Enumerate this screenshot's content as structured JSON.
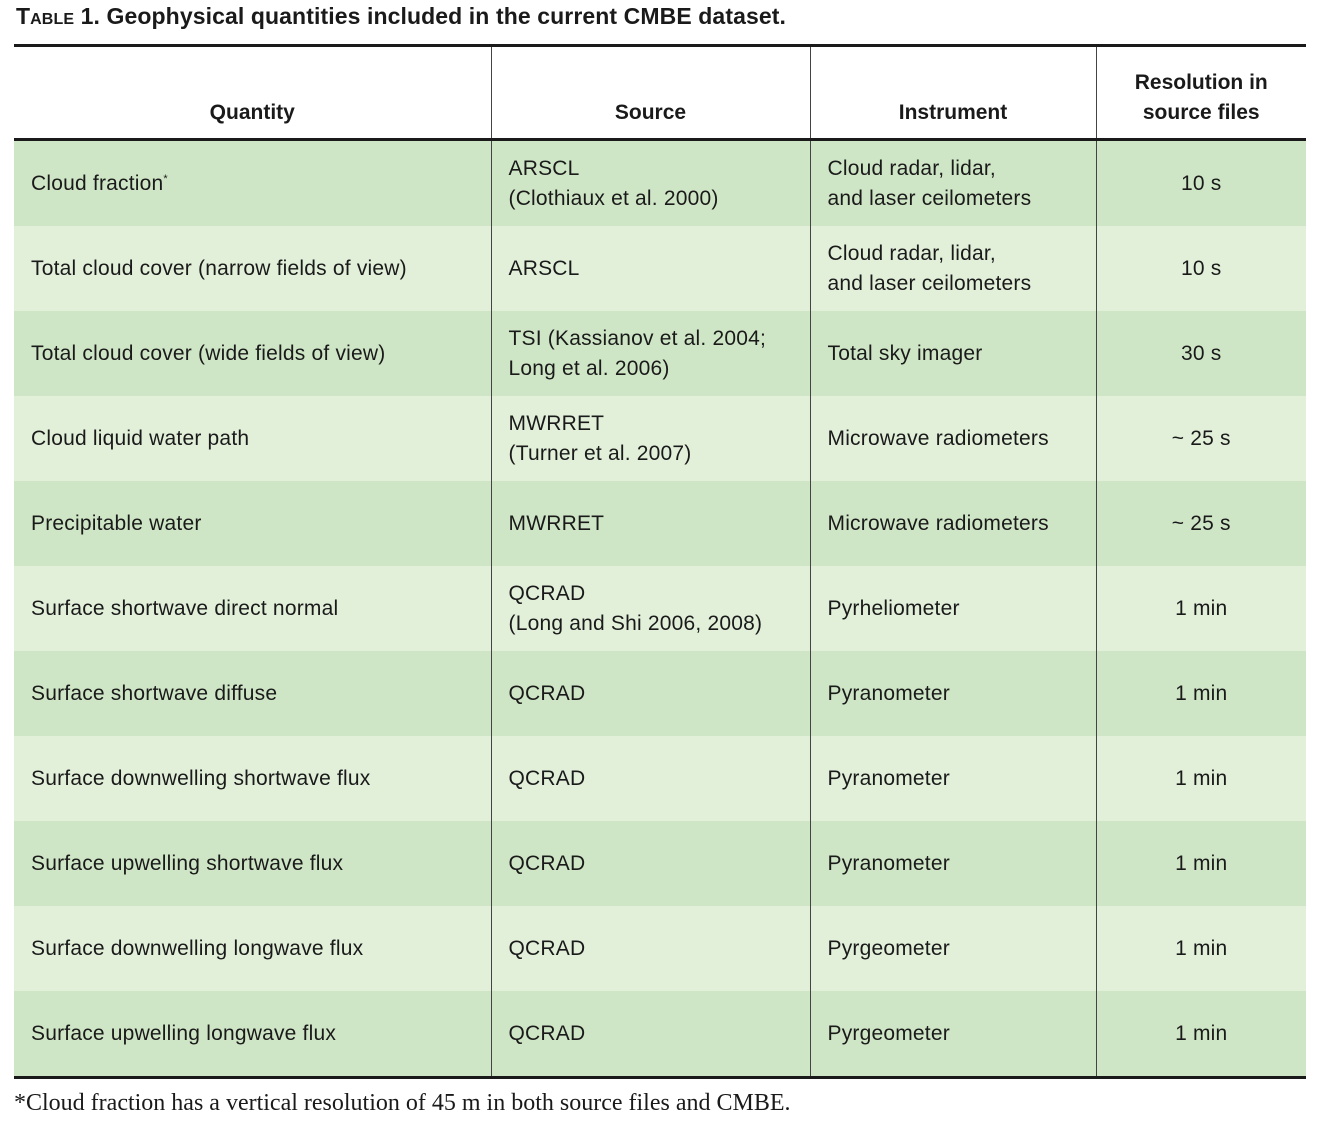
{
  "caption": {
    "label": "Table 1.",
    "text": "Geophysical quantities included in the current CMBE dataset."
  },
  "headers": [
    "Quantity",
    "Source",
    "Instrument",
    "Resolution in source files"
  ],
  "headers_split": {
    "resolution_line1": "Resolution in",
    "resolution_line2": "source files"
  },
  "rows": [
    {
      "quantity": "Cloud fraction",
      "quantity_mark": "*",
      "source": [
        "ARSCL",
        "(Clothiaux et al. 2000)"
      ],
      "instrument": [
        "Cloud radar, lidar,",
        "and laser ceilometers"
      ],
      "resolution": "10 s"
    },
    {
      "quantity": "Total cloud cover (narrow fields of view)",
      "source": [
        "ARSCL"
      ],
      "instrument": [
        "Cloud radar, lidar,",
        "and laser ceilometers"
      ],
      "resolution": "10 s"
    },
    {
      "quantity": "Total cloud cover (wide fields of view)",
      "source": [
        "TSI (Kassianov et al. 2004;",
        "Long et al. 2006)"
      ],
      "instrument": [
        "Total sky imager"
      ],
      "resolution": "30 s"
    },
    {
      "quantity": "Cloud liquid water path",
      "source": [
        "MWRRET",
        "(Turner et al. 2007)"
      ],
      "instrument": [
        "Microwave radiometers"
      ],
      "resolution": "~ 25 s"
    },
    {
      "quantity": "Precipitable water",
      "source": [
        "MWRRET"
      ],
      "instrument": [
        "Microwave radiometers"
      ],
      "resolution": "~ 25 s"
    },
    {
      "quantity": "Surface shortwave direct normal",
      "source": [
        "QCRAD",
        "(Long and Shi 2006, 2008)"
      ],
      "instrument": [
        "Pyrheliometer"
      ],
      "resolution": "1 min"
    },
    {
      "quantity": "Surface shortwave diffuse",
      "source": [
        "QCRAD"
      ],
      "instrument": [
        "Pyranometer"
      ],
      "resolution": "1 min"
    },
    {
      "quantity": "Surface downwelling shortwave flux",
      "source": [
        "QCRAD"
      ],
      "instrument": [
        "Pyranometer"
      ],
      "resolution": "1 min"
    },
    {
      "quantity": "Surface upwelling shortwave flux",
      "source": [
        "QCRAD"
      ],
      "instrument": [
        "Pyranometer"
      ],
      "resolution": "1 min"
    },
    {
      "quantity": "Surface downwelling longwave flux",
      "source": [
        "QCRAD"
      ],
      "instrument": [
        "Pyrgeometer"
      ],
      "resolution": "1 min"
    },
    {
      "quantity": "Surface upwelling longwave flux",
      "source": [
        "QCRAD"
      ],
      "instrument": [
        "Pyrgeometer"
      ],
      "resolution": "1 min"
    }
  ],
  "footnote": "*Cloud fraction has a vertical resolution of 45 m in both source files and CMBE.",
  "colors": {
    "row_dark": "#cfe6c6",
    "row_light": "#e2f0da",
    "rule": "#1a1a1a"
  }
}
